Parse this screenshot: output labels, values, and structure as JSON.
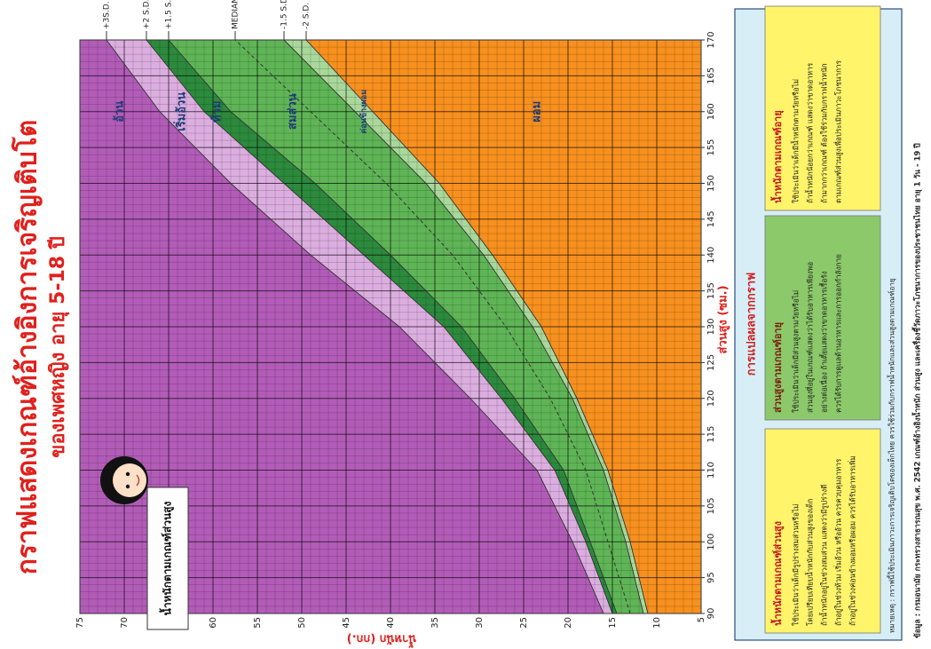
{
  "title": "กราฟแสดงเกณฑ์อ้างอิงการเจริญเติบโต",
  "subtitle": "ของเพศหญิง อายุ 5-18 ปี",
  "chart_data": {
    "type": "line",
    "x_label": "ส่วนสูง (ซม.)",
    "y_label": "น้ำหนัก (กก.)",
    "figure_label": "น้ำหนักตามเกณฑ์ส่วนสูง",
    "x": [
      90,
      100,
      110,
      120,
      130,
      140,
      150,
      160,
      170
    ],
    "series": [
      {
        "name": "-2 S.D.",
        "color": "#333333",
        "values": [
          11,
          13,
          15.5,
          19,
          23,
          28.5,
          34.5,
          42,
          49.5
        ]
      },
      {
        "name": "-1.5 S.D.",
        "color": "#333333",
        "values": [
          11.5,
          13.5,
          16,
          19.5,
          24,
          29.5,
          36,
          44,
          52
        ]
      },
      {
        "name": "MEDIAN",
        "color": "#333333",
        "dashed": true,
        "values": [
          13,
          15.5,
          18,
          22,
          27,
          33,
          40.5,
          49,
          57.5
        ]
      },
      {
        "name": "+1.5 S.D.",
        "color": "#333333",
        "values": [
          14.5,
          17.5,
          20.5,
          26,
          32,
          40,
          48.5,
          58,
          65
        ]
      },
      {
        "name": "+2 S.D.",
        "color": "#333333",
        "values": [
          15,
          18,
          21.5,
          27.5,
          34,
          43,
          52,
          61,
          67.5
        ]
      },
      {
        "name": "+3S.D.",
        "color": "#333333",
        "values": [
          16,
          19.5,
          23.5,
          31,
          39,
          49,
          58,
          66,
          72
        ]
      }
    ],
    "bands": [
      {
        "name": "ผอม",
        "color": "#f7901e"
      },
      {
        "name": "ค่อนข้างผอม",
        "color": "#a9d89b"
      },
      {
        "name": "สมส่วน",
        "color": "#5fb556"
      },
      {
        "name": "ท้วม",
        "color": "#2c8a3c"
      },
      {
        "name": "เริ่มอ้วน",
        "color": "#dcaee0"
      },
      {
        "name": "อ้วน",
        "color": "#b25cb8"
      }
    ],
    "xlim": [
      90,
      170
    ],
    "ylim": [
      5,
      75
    ],
    "xticks": [
      90,
      95,
      100,
      105,
      110,
      115,
      120,
      125,
      130,
      135,
      140,
      145,
      150,
      155,
      160,
      165,
      170
    ],
    "yticks": [
      5,
      10,
      15,
      20,
      25,
      30,
      35,
      40,
      45,
      50,
      55,
      60,
      65,
      70,
      75
    ],
    "grid": true
  },
  "panel": {
    "title": "การแปลผลจากกราฟ",
    "boxes": [
      {
        "title": "น้ำหนักตามเกณฑ์ส่วนสูง",
        "color": "#fff46a",
        "lines": [
          "ใช้ประเมินว่าเด็กมีรูปร่างสมส่วนหรือไม่",
          "โดยเปรียบเทียบน้ำหนักกับส่วนสูงของเด็ก",
          "ถ้าน้ำหนักอยู่ในช่วงสมส่วน แสดงว่ามีรูปร่างดี",
          "ถ้าอยู่ในช่วงท้วม เริ่มอ้วน หรืออ้วน ควรควบคุมอาหาร",
          "ถ้าอยู่ในช่วงค่อนข้างผอมหรือผอม ควรได้รับอาหารเพิ่ม"
        ]
      },
      {
        "title": "ส่วนสูงตามเกณฑ์อายุ",
        "color": "#8cc96a",
        "lines": [
          "ใช้ประเมินว่าเด็กมีส่วนสูงตามวัยหรือไม่",
          "ส่วนสูงที่อยู่ในเกณฑ์แสดงว่าได้รับอาหารเพียงพอ",
          "อย่างต่อเนื่อง ถ้าเตี้ยแสดงว่าขาดอาหารเรื้อรัง",
          "ควรได้รับการดูแลด้านอาหารและการออกกำลังกาย"
        ]
      },
      {
        "title": "น้ำหนักตามเกณฑ์อายุ",
        "color": "#fff46a",
        "lines": [
          "ใช้ประเมินว่าเด็กมีน้ำหนักตามวัยหรือไม่",
          "ถ้าน้ำหนักน้อยกว่าเกณฑ์ แสดงว่าขาดอาหาร",
          "ถ้ามากกว่าเกณฑ์ ต้องใช้ร่วมกับกราฟน้ำหนัก",
          "ตามเกณฑ์ส่วนสูงเพื่อประเมินภาวะโภชนาการ"
        ]
      }
    ],
    "note": "หมายเหตุ : กราฟนี้ใช้ประเมินภาวะการเจริญเติบโตของเด็กไทย ควรใช้ร่วมกับกราฟน้ำหนักและส่วนสูงตามเกณฑ์อายุ",
    "source": "ข้อมูล : กรมอนามัย กระทรวงสาธารณสุข พ.ศ. 2542 เกณฑ์อ้างอิงน้ำหนัก ส่วนสูง และเครื่องชี้วัดภาวะโภชนาการของประชาชนไทย อายุ 1 วัน - 19 ปี"
  }
}
